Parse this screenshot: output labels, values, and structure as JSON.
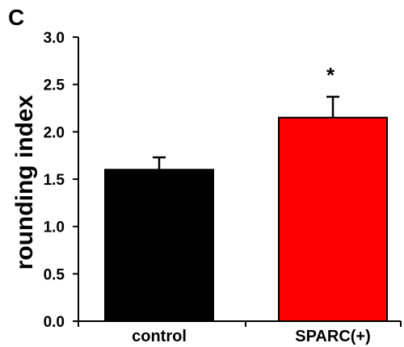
{
  "panel_label": "C",
  "chart_data": {
    "type": "bar",
    "categories": [
      "control",
      "SPARC(+)"
    ],
    "values": [
      1.6,
      2.15
    ],
    "errors": [
      0.13,
      0.22
    ],
    "colors": [
      "#000000",
      "#ff0000"
    ],
    "annotations": [
      "",
      "*"
    ],
    "ylabel": "rounding index",
    "xlabel": "",
    "ylim": [
      0,
      3.0
    ],
    "yticks": [
      "0.0",
      "0.5",
      "1.0",
      "1.5",
      "2.0",
      "2.5",
      "3.0"
    ],
    "grid": false,
    "legend": "none"
  }
}
